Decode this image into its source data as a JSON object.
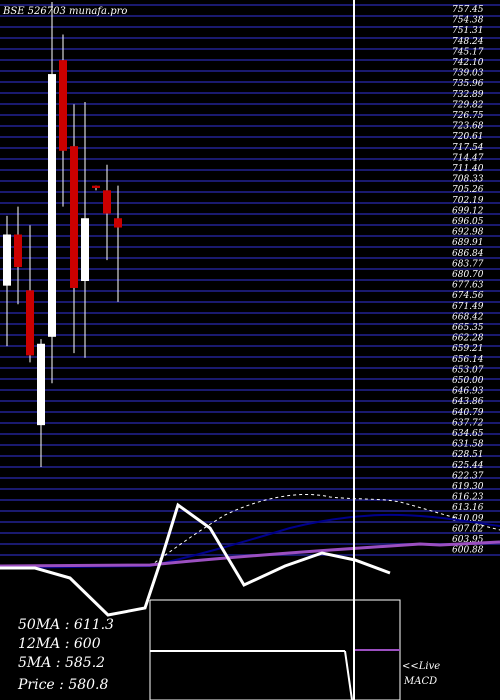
{
  "header": {
    "title": "BSE 526703 munafa.pro"
  },
  "colors": {
    "background": "#000000",
    "grid": "#1a1a6e",
    "bull": "#ffffff",
    "bear": "#cc0000",
    "ma_fast": "#ffffff",
    "ma_slow": "#00008b",
    "ma_long": "#9b4fc0",
    "macd": "#ffffff"
  },
  "stats": {
    "ma50": "50MA : 611.3",
    "ma12": "12MA : 600",
    "ma5": "5MA : 585.2",
    "price": "Price   : 580.8"
  },
  "macd_label": {
    "line1": "<<Live",
    "line2": "MACD"
  },
  "chart_data": {
    "type": "candlestick",
    "title": "BSE 526703 munafa.pro",
    "ylim": [
      520,
      760
    ],
    "y_tick_labels": [
      "757.45",
      "754.38",
      "751.31",
      "748.24",
      "745.17",
      "742.10",
      "739.03",
      "735.96",
      "732.89",
      "729.82",
      "726.75",
      "723.68",
      "720.61",
      "717.54",
      "714.47",
      "711.40",
      "708.33",
      "705.26",
      "702.19",
      "699.12",
      "696.05",
      "692.98",
      "689.91",
      "686.84",
      "683.77",
      "680.70",
      "677.63",
      "674.56",
      "671.49",
      "668.42",
      "665.35",
      "662.28",
      "659.21",
      "656.14",
      "653.07",
      "650.00",
      "646.93",
      "643.86",
      "640.79",
      "637.72",
      "634.65",
      "631.58",
      "628.51",
      "625.44",
      "622.37",
      "619.30",
      "616.23",
      "613.16",
      "610.09",
      "607.02",
      "603.95",
      "600.88"
    ],
    "candles": [
      {
        "o": 638,
        "h": 668,
        "l": 612,
        "c": 660,
        "dir": "up"
      },
      {
        "o": 660,
        "h": 672,
        "l": 630,
        "c": 646,
        "dir": "down"
      },
      {
        "o": 636,
        "h": 664,
        "l": 605,
        "c": 608,
        "dir": "down"
      },
      {
        "o": 578,
        "h": 615,
        "l": 560,
        "c": 613,
        "dir": "up"
      },
      {
        "o": 616,
        "h": 760,
        "l": 596,
        "c": 729,
        "dir": "up"
      },
      {
        "o": 735,
        "h": 746,
        "l": 672,
        "c": 696,
        "dir": "down"
      },
      {
        "o": 698,
        "h": 716,
        "l": 609,
        "c": 637,
        "dir": "down"
      },
      {
        "o": 640,
        "h": 717,
        "l": 607,
        "c": 667,
        "dir": "up"
      },
      {
        "o": 681,
        "h": 681,
        "l": 679,
        "c": 680,
        "dir": "down"
      },
      {
        "o": 679,
        "h": 690,
        "l": 649,
        "c": 669,
        "dir": "down"
      },
      {
        "o": 667,
        "h": 681,
        "l": 631,
        "c": 663,
        "dir": "down"
      }
    ],
    "ma_fast_line": "dashed",
    "ma_slow_line": "solid",
    "ma_long_line": "solid",
    "macd_line": "solid"
  }
}
